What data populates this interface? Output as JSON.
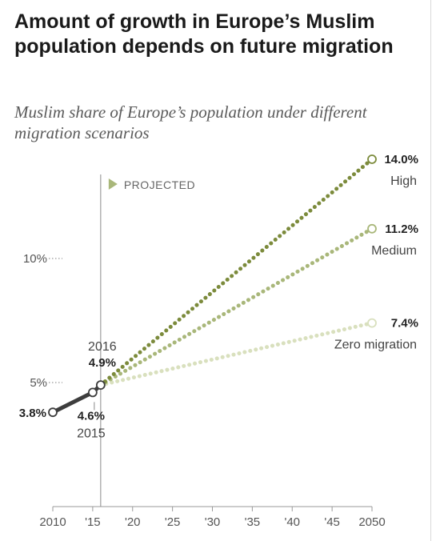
{
  "chart_data": {
    "type": "line",
    "title": "Amount of growth in Europe’s Muslim population depends on future migration",
    "subtitle": "Muslim share of Europe’s population under different migration scenarios",
    "projected_label": "PROJECTED",
    "x_ticks": [
      {
        "value": 2010,
        "label": "2010"
      },
      {
        "value": 2015,
        "label": "'15"
      },
      {
        "value": 2020,
        "label": "'20"
      },
      {
        "value": 2025,
        "label": "'25"
      },
      {
        "value": 2030,
        "label": "'30"
      },
      {
        "value": 2035,
        "label": "'35"
      },
      {
        "value": 2040,
        "label": "'40"
      },
      {
        "value": 2045,
        "label": "'45"
      },
      {
        "value": 2050,
        "label": "2050"
      }
    ],
    "y_ticks": [
      {
        "value": 5,
        "label": "5%"
      },
      {
        "value": 10,
        "label": "10%"
      }
    ],
    "xlim": [
      2010,
      2050
    ],
    "ylim": [
      0,
      15
    ],
    "historical": {
      "x": [
        2010,
        2015,
        2016
      ],
      "y": [
        3.8,
        4.6,
        4.9
      ],
      "color": "#3d3d3d",
      "labels": [
        {
          "year": "",
          "value": "3.8%"
        },
        {
          "year": "2015",
          "value": "4.6%"
        },
        {
          "year": "2016",
          "value": "4.9%"
        }
      ]
    },
    "series": [
      {
        "name": "High",
        "x": [
          2016,
          2050
        ],
        "y": [
          4.9,
          14.0
        ],
        "end_label": "14.0%",
        "color": "#7c8b3c"
      },
      {
        "name": "Medium",
        "x": [
          2016,
          2050
        ],
        "y": [
          4.9,
          11.2
        ],
        "end_label": "11.2%",
        "color": "#a9b77a"
      },
      {
        "name": "Zero migration",
        "x": [
          2016,
          2050
        ],
        "y": [
          4.9,
          7.4
        ],
        "end_label": "7.4%",
        "color": "#d9e0be"
      }
    ]
  }
}
